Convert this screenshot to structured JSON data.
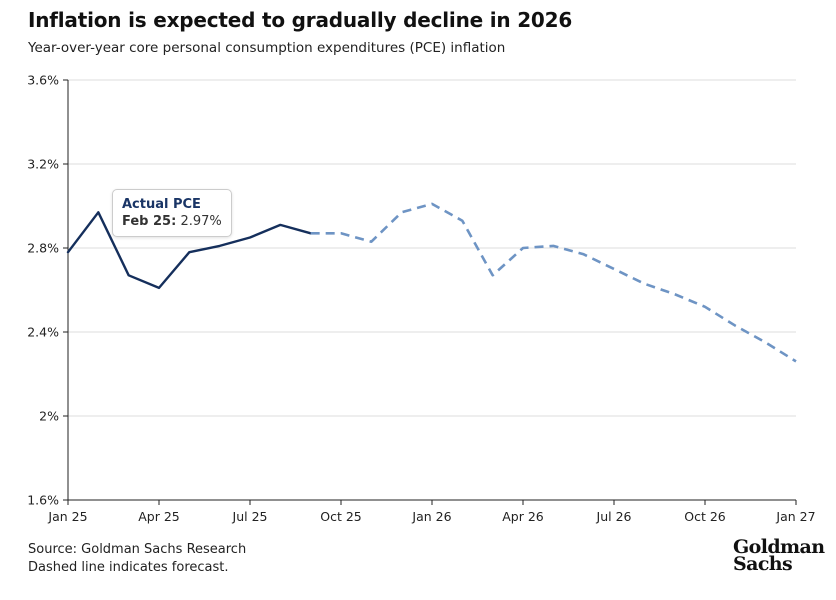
{
  "title": "Inflation is expected to gradually decline in 2026",
  "subtitle": "Year-over-year core personal consumption expenditures (PCE) inflation",
  "tooltip": {
    "title": "Actual PCE",
    "label": "Feb 25:",
    "value": "2.97%"
  },
  "source": {
    "line1": "Source: Goldman Sachs Research",
    "line2": "Dashed line indicates forecast."
  },
  "logo": {
    "line1": "Goldman",
    "line2": "Sachs"
  },
  "colors": {
    "actual": "#152f5c",
    "forecast": "#6e94c4",
    "grid": "#dddddd",
    "axis": "#222222"
  },
  "chart_data": {
    "type": "line",
    "title": "Inflation is expected to gradually decline in 2026",
    "subtitle": "Year-over-year core personal consumption expenditures (PCE) inflation",
    "ylim": [
      1.6,
      3.6
    ],
    "y_ticks": [
      {
        "value": 1.6,
        "label": "1.6%"
      },
      {
        "value": 2.0,
        "label": "2%"
      },
      {
        "value": 2.4,
        "label": "2.4%"
      },
      {
        "value": 2.8,
        "label": "2.8%"
      },
      {
        "value": 3.2,
        "label": "3.2%"
      },
      {
        "value": 3.6,
        "label": "3.6%"
      }
    ],
    "x_ticks": [
      {
        "month": 0,
        "label": "Jan 25"
      },
      {
        "month": 3,
        "label": "Apr 25"
      },
      {
        "month": 6,
        "label": "Jul 25"
      },
      {
        "month": 9,
        "label": "Oct 25"
      },
      {
        "month": 12,
        "label": "Jan 26"
      },
      {
        "month": 15,
        "label": "Apr 26"
      },
      {
        "month": 18,
        "label": "Jul 26"
      },
      {
        "month": 21,
        "label": "Oct 26"
      },
      {
        "month": 24,
        "label": "Jan 27"
      }
    ],
    "grid": true,
    "series": [
      {
        "name": "Actual PCE",
        "style": "solid",
        "points": [
          {
            "x": "Jan 25",
            "y": 2.78
          },
          {
            "x": "Feb 25",
            "y": 2.97
          },
          {
            "x": "Mar 25",
            "y": 2.67
          },
          {
            "x": "Apr 25",
            "y": 2.61
          },
          {
            "x": "May 25",
            "y": 2.78
          },
          {
            "x": "Jun 25",
            "y": 2.81
          },
          {
            "x": "Jul 25",
            "y": 2.85
          },
          {
            "x": "Aug 25",
            "y": 2.91
          },
          {
            "x": "Sep 25",
            "y": 2.87
          }
        ]
      },
      {
        "name": "",
        "style": "dashed",
        "points": [
          {
            "x": "Sep 25",
            "y": 2.87
          },
          {
            "x": "Oct 25",
            "y": 2.87
          },
          {
            "x": "Nov 25",
            "y": 2.83
          },
          {
            "x": "Dec 25",
            "y": 2.97
          },
          {
            "x": "Jan 26",
            "y": 3.01
          },
          {
            "x": "Feb 26",
            "y": 2.93
          },
          {
            "x": "Mar 26",
            "y": 2.67
          },
          {
            "x": "Apr 26",
            "y": 2.8
          },
          {
            "x": "May 26",
            "y": 2.81
          },
          {
            "x": "Jun 26",
            "y": 2.77
          },
          {
            "x": "Jul 26",
            "y": 2.7
          },
          {
            "x": "Aug 26",
            "y": 2.63
          },
          {
            "x": "Sep 26",
            "y": 2.58
          },
          {
            "x": "Oct 26",
            "y": 2.52
          },
          {
            "x": "Nov 26",
            "y": 2.43
          },
          {
            "x": "Dec 26",
            "y": 2.35
          },
          {
            "x": "Jan 27",
            "y": 2.26
          }
        ]
      }
    ]
  }
}
